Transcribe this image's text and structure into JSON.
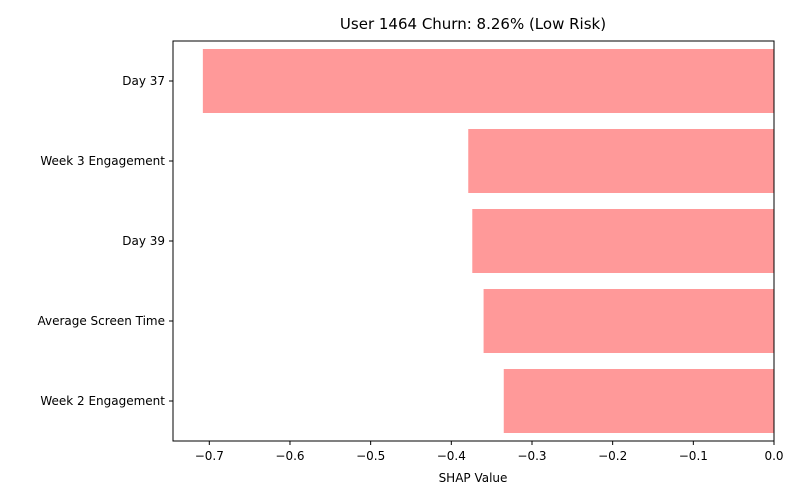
{
  "chart_data": {
    "type": "bar",
    "orientation": "horizontal",
    "title": "User 1464 Churn: 8.26% (Low Risk)",
    "xlabel": "SHAP Value",
    "ylabel": "",
    "categories": [
      "Day 37",
      "Week 3 Engagement",
      "Day 39",
      "Average Screen Time",
      "Week 2 Engagement"
    ],
    "values": [
      -0.708,
      -0.379,
      -0.374,
      -0.36,
      -0.335
    ],
    "xlim": [
      -0.745,
      0.0
    ],
    "xticks": [
      -0.7,
      -0.6,
      -0.5,
      -0.4,
      -0.3,
      -0.2,
      -0.1,
      0.0
    ],
    "xtick_labels": [
      "−0.7",
      "−0.6",
      "−0.5",
      "−0.4",
      "−0.3",
      "−0.2",
      "−0.1",
      "0.0"
    ],
    "bar_color": "#ff9999",
    "grid": false,
    "legend": "none"
  }
}
